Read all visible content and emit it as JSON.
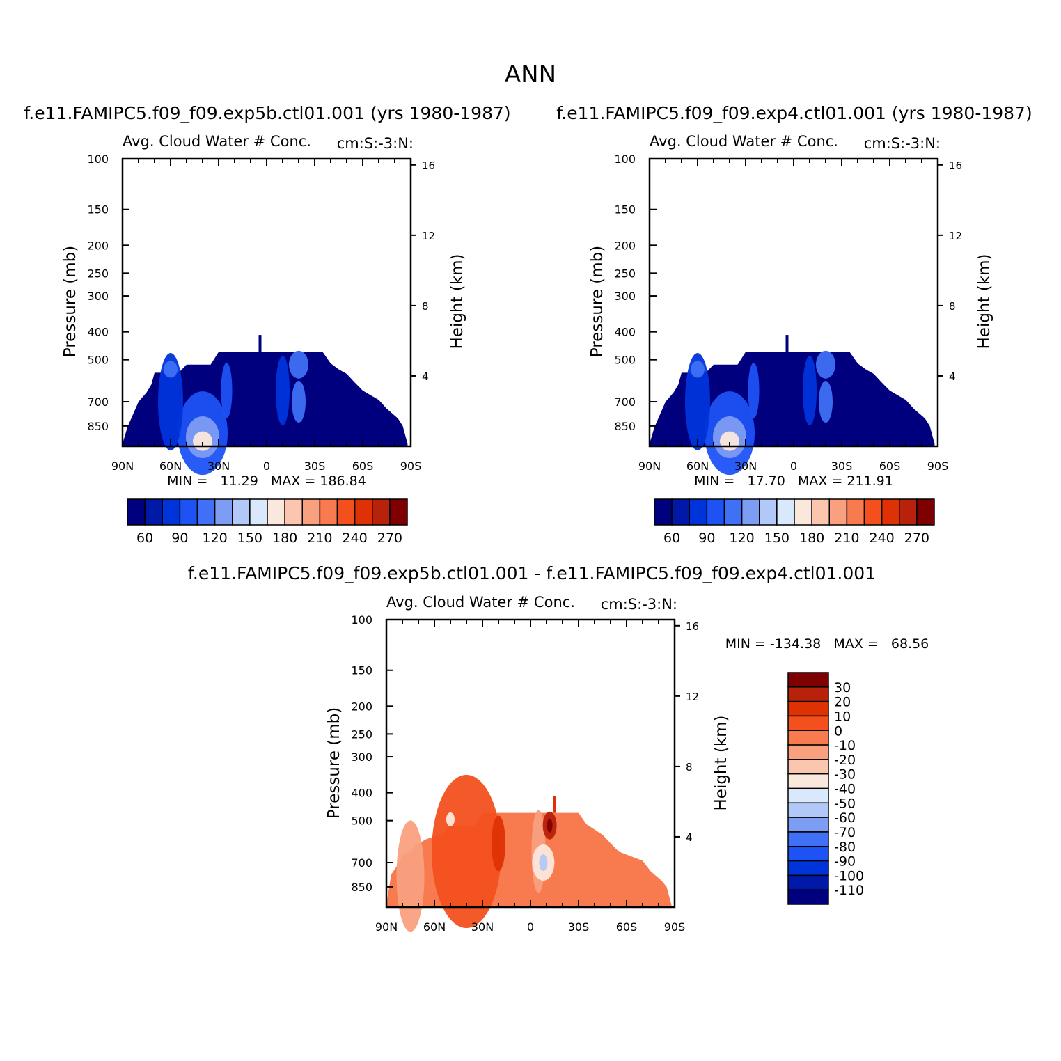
{
  "figure_title": "ANN",
  "chart_data": [
    {
      "type": "contour",
      "title": "f.e11.FAMIPC5.f09_f09.exp5b.ctl01.001 (yrs 1980-1987)",
      "subtitle_left": "Avg. Cloud Water # Conc.",
      "subtitle_right": "cm:S:-3:N:",
      "ylabel": "Pressure (mb)",
      "ylabel_right": "Height (km)",
      "pressure_ticks": [
        "100",
        "150",
        "200",
        "250",
        "300",
        "400",
        "500",
        "700",
        "850"
      ],
      "pressure_values": [
        100,
        150,
        200,
        250,
        300,
        400,
        500,
        700,
        850
      ],
      "height_ticks": [
        "16",
        "12",
        "8",
        "4"
      ],
      "height_values": [
        16,
        12,
        8,
        4
      ],
      "lat_ticks": [
        "90N",
        "60N",
        "30N",
        "0",
        "30S",
        "60S",
        "90S"
      ],
      "lat_values": [
        90,
        60,
        30,
        0,
        -30,
        -60,
        -90
      ],
      "ylim": [
        1000,
        100
      ],
      "xlim": [
        90,
        -90
      ],
      "min_text": "MIN =   11.29   MAX = 186.84",
      "colorbar_labels": [
        "60",
        "90",
        "120",
        "150",
        "180",
        "210",
        "240",
        "270"
      ],
      "colorbar_levels": [
        60,
        90,
        120,
        150,
        180,
        210,
        240,
        270
      ],
      "colors": [
        "#00007f",
        "#0019a8",
        "#0034db",
        "#1d52f5",
        "#3f70f5",
        "#7d9cf3",
        "#b2c8f7",
        "#d9e8fb",
        "#fbe8dc",
        "#fbc6ad",
        "#f9a07f",
        "#f87a4f",
        "#f3501e",
        "#de3205",
        "#b8210a",
        "#7f0000"
      ]
    },
    {
      "type": "contour",
      "title": "f.e11.FAMIPC5.f09_f09.exp4.ctl01.001 (yrs 1980-1987)",
      "subtitle_left": "Avg. Cloud Water # Conc.",
      "subtitle_right": "cm:S:-3:N:",
      "ylabel": "Pressure (mb)",
      "ylabel_right": "Height (km)",
      "pressure_ticks": [
        "100",
        "150",
        "200",
        "250",
        "300",
        "400",
        "500",
        "700",
        "850"
      ],
      "pressure_values": [
        100,
        150,
        200,
        250,
        300,
        400,
        500,
        700,
        850
      ],
      "height_ticks": [
        "16",
        "12",
        "8",
        "4"
      ],
      "height_values": [
        16,
        12,
        8,
        4
      ],
      "lat_ticks": [
        "90N",
        "60N",
        "30N",
        "0",
        "30S",
        "60S",
        "90S"
      ],
      "lat_values": [
        90,
        60,
        30,
        0,
        -30,
        -60,
        -90
      ],
      "ylim": [
        1000,
        100
      ],
      "xlim": [
        90,
        -90
      ],
      "min_text": "MIN =   17.70   MAX = 211.91",
      "colorbar_labels": [
        "60",
        "90",
        "120",
        "150",
        "180",
        "210",
        "240",
        "270"
      ],
      "colorbar_levels": [
        60,
        90,
        120,
        150,
        180,
        210,
        240,
        270
      ],
      "colors": [
        "#00007f",
        "#0019a8",
        "#0034db",
        "#1d52f5",
        "#3f70f5",
        "#7d9cf3",
        "#b2c8f7",
        "#d9e8fb",
        "#fbe8dc",
        "#fbc6ad",
        "#f9a07f",
        "#f87a4f",
        "#f3501e",
        "#de3205",
        "#b8210a",
        "#7f0000"
      ]
    },
    {
      "type": "contour",
      "title": "f.e11.FAMIPC5.f09_f09.exp5b.ctl01.001 - f.e11.FAMIPC5.f09_f09.exp4.ctl01.001",
      "subtitle_left": "Avg. Cloud Water # Conc.",
      "subtitle_right": "cm:S:-3:N:",
      "ylabel": "Pressure (mb)",
      "ylabel_right": "Height (km)",
      "pressure_ticks": [
        "100",
        "150",
        "200",
        "250",
        "300",
        "400",
        "500",
        "700",
        "850"
      ],
      "pressure_values": [
        100,
        150,
        200,
        250,
        300,
        400,
        500,
        700,
        850
      ],
      "height_ticks": [
        "16",
        "12",
        "8",
        "4"
      ],
      "height_values": [
        16,
        12,
        8,
        4
      ],
      "lat_ticks": [
        "90N",
        "60N",
        "30N",
        "0",
        "30S",
        "60S",
        "90S"
      ],
      "lat_values": [
        90,
        60,
        30,
        0,
        -30,
        -60,
        -90
      ],
      "ylim": [
        1000,
        100
      ],
      "xlim": [
        90,
        -90
      ],
      "min_text": "MIN = -134.38   MAX =   68.56",
      "colorbar_labels": [
        "30",
        "20",
        "10",
        "0",
        "-10",
        "-20",
        "-30",
        "-40",
        "-50",
        "-60",
        "-70",
        "-80",
        "-90",
        "-100",
        "-110"
      ],
      "colorbar_levels": [
        30,
        20,
        10,
        0,
        -10,
        -20,
        -30,
        -40,
        -50,
        -60,
        -70,
        -80,
        -90,
        -100,
        -110
      ],
      "colors": [
        "#7f0000",
        "#b8210a",
        "#de3205",
        "#f3501e",
        "#f87a4f",
        "#f9a07f",
        "#fbc6ad",
        "#fbe8dc",
        "#d9e8fb",
        "#b2c8f7",
        "#7d9cf3",
        "#3f70f5",
        "#1d52f5",
        "#0034db",
        "#0019a8",
        "#00007f"
      ]
    }
  ]
}
